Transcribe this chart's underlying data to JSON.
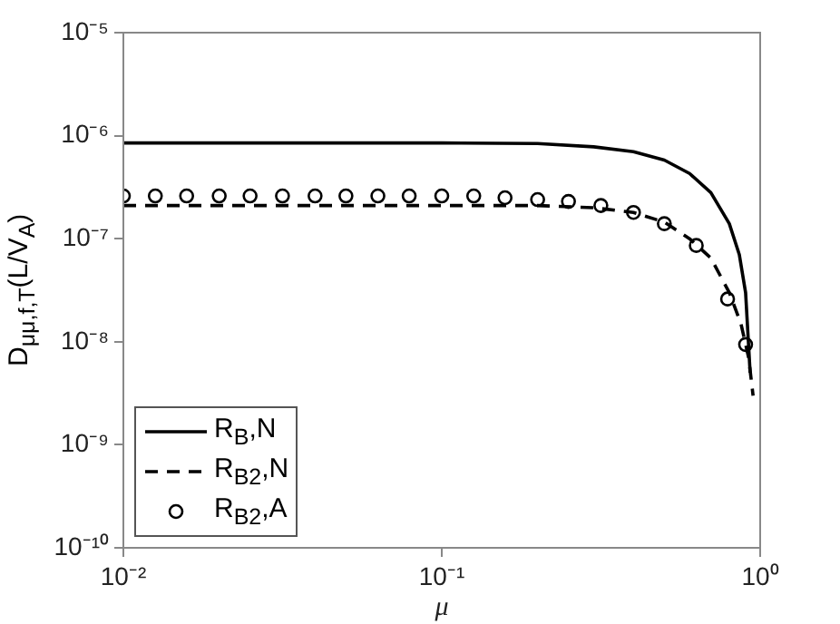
{
  "chart_data": {
    "type": "line",
    "xlabel": "μ",
    "ylabel": "D$_{μμ,f,T}$(L/V$_{A}$)",
    "log": "xy",
    "grid": false,
    "legend": "bottom left",
    "xlim": [
      0.01,
      1
    ],
    "xticks": [
      {
        "value": 0.01,
        "label": "10⁻²"
      },
      {
        "value": 0.1,
        "label": "10⁻¹"
      },
      {
        "value": 1,
        "label": "10⁰"
      }
    ],
    "ylim": [
      1e-10,
      1e-05
    ],
    "yticks": [
      {
        "value": 1e-10,
        "label": "10⁻¹⁰"
      },
      {
        "value": 1e-09,
        "label": "10⁻⁹"
      },
      {
        "value": 1e-08,
        "label": "10⁻⁸"
      },
      {
        "value": 1e-07,
        "label": "10⁻⁷"
      },
      {
        "value": 1e-06,
        "label": "10⁻⁶"
      },
      {
        "value": 1e-05,
        "label": "10⁻⁵"
      }
    ],
    "series": [
      {
        "name": "R$_{B}$,N",
        "type": "line",
        "line_style": "solid",
        "color": "#000000",
        "x": [
          0.01,
          0.05,
          0.1,
          0.2,
          0.3,
          0.4,
          0.5,
          0.6,
          0.7,
          0.8,
          0.86,
          0.9,
          0.93
        ],
        "values": [
          8.5e-07,
          8.5e-07,
          8.5e-07,
          8.4e-07,
          7.8e-07,
          7e-07,
          5.8e-07,
          4.3e-07,
          2.8e-07,
          1.4e-07,
          7e-08,
          3e-08,
          5e-09
        ]
      },
      {
        "name": "R$_{B2}$,N",
        "type": "line",
        "line_style": "dashed",
        "color": "#000000",
        "x": [
          0.01,
          0.05,
          0.1,
          0.2,
          0.3,
          0.4,
          0.5,
          0.6,
          0.7,
          0.8,
          0.87,
          0.92,
          0.95
        ],
        "values": [
          2.1e-07,
          2.1e-07,
          2.1e-07,
          2.1e-07,
          2e-07,
          1.8e-07,
          1.45e-07,
          1e-07,
          6.5e-08,
          3e-08,
          1.5e-08,
          7e-09,
          3e-09
        ]
      },
      {
        "name": "R$_{B2}$,A",
        "type": "scatter",
        "marker": "circle",
        "color": "#000000",
        "x": [
          0.01,
          0.0126,
          0.0158,
          0.02,
          0.025,
          0.0316,
          0.04,
          0.05,
          0.063,
          0.079,
          0.1,
          0.126,
          0.158,
          0.2,
          0.25,
          0.316,
          0.4,
          0.5,
          0.63,
          0.79,
          0.9
        ],
        "values": [
          2.6e-07,
          2.6e-07,
          2.6e-07,
          2.6e-07,
          2.6e-07,
          2.6e-07,
          2.6e-07,
          2.6e-07,
          2.6e-07,
          2.6e-07,
          2.6e-07,
          2.6e-07,
          2.5e-07,
          2.4e-07,
          2.3e-07,
          2.1e-07,
          1.8e-07,
          1.4e-07,
          8.6e-08,
          2.6e-08,
          9.4e-09
        ]
      }
    ]
  }
}
